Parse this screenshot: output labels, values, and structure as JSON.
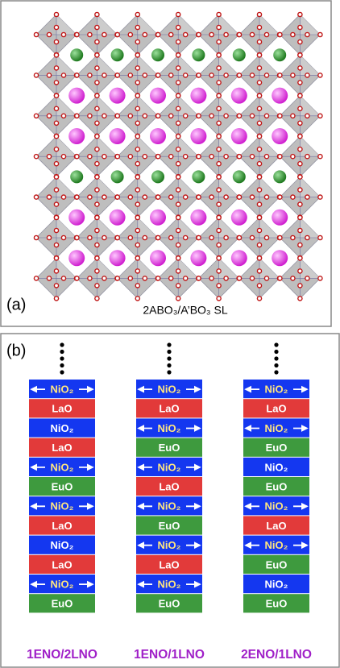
{
  "panels": {
    "a": {
      "label": "(a)",
      "caption": "2ABO₃/A’BO₃ SL"
    },
    "b": {
      "label": "(b)",
      "columns": [
        {
          "label": "1ENO/2LNO",
          "layers": [
            {
              "text": "NiO₂",
              "color": "#1437f0",
              "arrows": true
            },
            {
              "text": "LaO",
              "color": "#e23a3a",
              "arrows": false
            },
            {
              "text": "NiO₂",
              "color": "#1437f0",
              "arrows": false
            },
            {
              "text": "LaO",
              "color": "#e23a3a",
              "arrows": false
            },
            {
              "text": "NiO₂",
              "color": "#1437f0",
              "arrows": true
            },
            {
              "text": "EuO",
              "color": "#3e9a3e",
              "arrows": false
            },
            {
              "text": "NiO₂",
              "color": "#1437f0",
              "arrows": true
            },
            {
              "text": "LaO",
              "color": "#e23a3a",
              "arrows": false
            },
            {
              "text": "NiO₂",
              "color": "#1437f0",
              "arrows": false
            },
            {
              "text": "LaO",
              "color": "#e23a3a",
              "arrows": false
            },
            {
              "text": "NiO₂",
              "color": "#1437f0",
              "arrows": true
            },
            {
              "text": "EuO",
              "color": "#3e9a3e",
              "arrows": false
            }
          ]
        },
        {
          "label": "1ENO/1LNO",
          "layers": [
            {
              "text": "NiO₂",
              "color": "#1437f0",
              "arrows": true
            },
            {
              "text": "LaO",
              "color": "#e23a3a",
              "arrows": false
            },
            {
              "text": "NiO₂",
              "color": "#1437f0",
              "arrows": true
            },
            {
              "text": "EuO",
              "color": "#3e9a3e",
              "arrows": false
            },
            {
              "text": "NiO₂",
              "color": "#1437f0",
              "arrows": true
            },
            {
              "text": "LaO",
              "color": "#e23a3a",
              "arrows": false
            },
            {
              "text": "NiO₂",
              "color": "#1437f0",
              "arrows": true
            },
            {
              "text": "EuO",
              "color": "#3e9a3e",
              "arrows": false
            },
            {
              "text": "NiO₂",
              "color": "#1437f0",
              "arrows": true
            },
            {
              "text": "LaO",
              "color": "#e23a3a",
              "arrows": false
            },
            {
              "text": "NiO₂",
              "color": "#1437f0",
              "arrows": true
            },
            {
              "text": "EuO",
              "color": "#3e9a3e",
              "arrows": false
            }
          ]
        },
        {
          "label": "2ENO/1LNO",
          "layers": [
            {
              "text": "NiO₂",
              "color": "#1437f0",
              "arrows": true
            },
            {
              "text": "LaO",
              "color": "#e23a3a",
              "arrows": false
            },
            {
              "text": "NiO₂",
              "color": "#1437f0",
              "arrows": true
            },
            {
              "text": "EuO",
              "color": "#3e9a3e",
              "arrows": false
            },
            {
              "text": "NiO₂",
              "color": "#1437f0",
              "arrows": false
            },
            {
              "text": "EuO",
              "color": "#3e9a3e",
              "arrows": false
            },
            {
              "text": "NiO₂",
              "color": "#1437f0",
              "arrows": true
            },
            {
              "text": "LaO",
              "color": "#e23a3a",
              "arrows": false
            },
            {
              "text": "NiO₂",
              "color": "#1437f0",
              "arrows": true
            },
            {
              "text": "EuO",
              "color": "#3e9a3e",
              "arrows": false
            },
            {
              "text": "NiO₂",
              "color": "#1437f0",
              "arrows": false
            },
            {
              "text": "EuO",
              "color": "#3e9a3e",
              "arrows": false
            }
          ]
        }
      ]
    }
  }
}
